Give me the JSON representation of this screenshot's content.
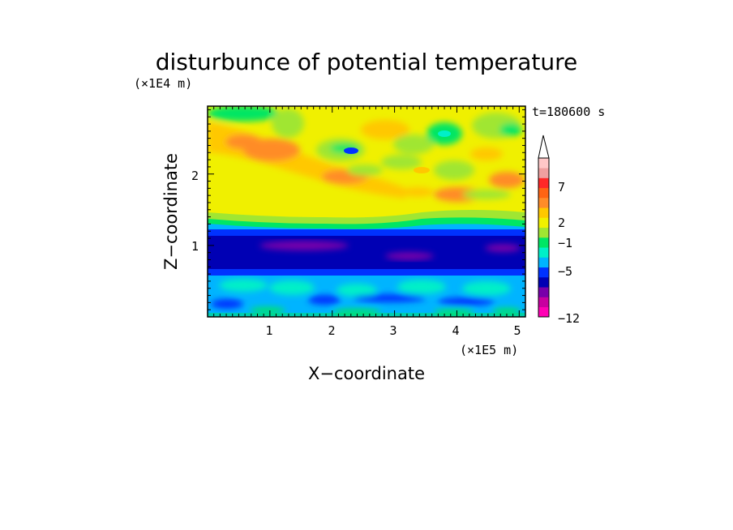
{
  "chart_data": {
    "type": "heatmap",
    "title": "disturbunce of potential temperature",
    "xlabel": "X−coordinate",
    "ylabel": "Z−coordinate",
    "x_unit": "(×1E5 m)",
    "y_unit": "(×1E4 m)",
    "time_label": "t=180600 s",
    "xlim": [
      0,
      5.1
    ],
    "ylim": [
      0,
      2.95
    ],
    "x_ticks": [
      "1",
      "2",
      "3",
      "4",
      "5"
    ],
    "y_ticks": [
      "1",
      "2"
    ],
    "colorbar_levels": [
      "−12",
      "−5",
      "−1",
      "2",
      "7"
    ],
    "colorbar_colors": [
      "#ff00b4",
      "#c800a0",
      "#7800aa",
      "#0000b4",
      "#0032ff",
      "#00b4ff",
      "#00f0c8",
      "#00e664",
      "#a0e632",
      "#f0f000",
      "#ffc800",
      "#ff8c28",
      "#ff6414",
      "#ff2828",
      "#f0a0a0",
      "#ffc8c8"
    ]
  }
}
